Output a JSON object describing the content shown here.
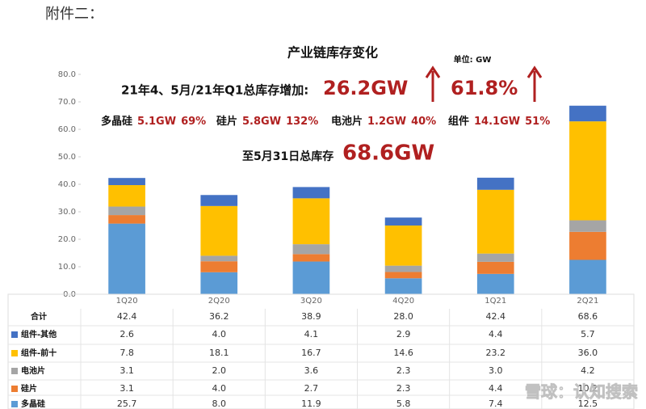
{
  "header": "附件二：",
  "chart_data": {
    "type": "stacked_bar",
    "title": "产业链库存变化",
    "unit": "单位: GW",
    "categories": [
      "1Q20",
      "2Q20",
      "3Q20",
      "4Q20",
      "1Q21",
      "2Q21"
    ],
    "series": [
      {
        "name": "多晶硅",
        "color": "#5b9bd5",
        "values": [
          25.7,
          8.0,
          11.9,
          5.8,
          7.4,
          12.5
        ],
        "value_labels": [
          "25.7",
          "8.0",
          "11.9",
          "5.8",
          "7.4",
          "12.5"
        ]
      },
      {
        "name": "硅片",
        "color": "#ed7d31",
        "values": [
          3.1,
          4.0,
          2.7,
          2.3,
          4.4,
          10.2
        ],
        "value_labels": [
          "3.1",
          "4.0",
          "2.7",
          "2.3",
          "4.4",
          "10.2"
        ]
      },
      {
        "name": "电池片",
        "color": "#a5a5a5",
        "values": [
          3.1,
          2.0,
          3.6,
          2.3,
          3.0,
          4.2
        ],
        "value_labels": [
          "3.1",
          "2.0",
          "3.6",
          "2.3",
          "3.0",
          "4.2"
        ]
      },
      {
        "name": "组件-前十",
        "color": "#ffc000",
        "values": [
          7.8,
          18.1,
          16.7,
          14.6,
          23.2,
          36.0
        ],
        "value_labels": [
          "7.8",
          "18.1",
          "16.7",
          "14.6",
          "23.2",
          "36.0"
        ]
      },
      {
        "name": "组件-其他",
        "color": "#4472c4",
        "values": [
          2.6,
          4.0,
          4.1,
          2.9,
          4.4,
          5.7
        ],
        "value_labels": [
          "2.6",
          "4.0",
          "4.1",
          "2.9",
          "4.4",
          "5.7"
        ]
      }
    ],
    "total_name": "合计",
    "totals": [
      42.4,
      36.2,
      38.9,
      28.0,
      42.4,
      68.6
    ],
    "total_labels": [
      "42.4",
      "36.2",
      "38.9",
      "28.0",
      "42.4",
      "68.6"
    ],
    "ylim": [
      0,
      80
    ],
    "yticks": [
      {
        "value": 0,
        "label": "0.0"
      },
      {
        "value": 10,
        "label": "10.0"
      },
      {
        "value": 20,
        "label": "20.0"
      },
      {
        "value": 30,
        "label": "30.0"
      },
      {
        "value": 40,
        "label": "40.0"
      },
      {
        "value": 50,
        "label": "50.0"
      },
      {
        "value": 60,
        "label": "60.0"
      },
      {
        "value": 70,
        "label": "70.0"
      },
      {
        "value": 80,
        "label": "80.0"
      }
    ],
    "annotations": {
      "increase_label": "21年4、5月/21年Q1总库存增加:",
      "increase_value": "26.2GW",
      "increase_pct": "61.8%",
      "items": [
        {
          "name": "多晶硅",
          "value": "5.1GW",
          "pct": "69%"
        },
        {
          "name": "硅片",
          "value": "5.8GW",
          "pct": "132%"
        },
        {
          "name": "电池片",
          "value": "1.2GW",
          "pct": "40%"
        },
        {
          "name": "组件",
          "value": "14.1GW",
          "pct": "51%"
        }
      ],
      "stock_label": "至5月31日总库存",
      "stock_value": "68.6GW"
    },
    "watermark": "雪球：认知搜索"
  }
}
